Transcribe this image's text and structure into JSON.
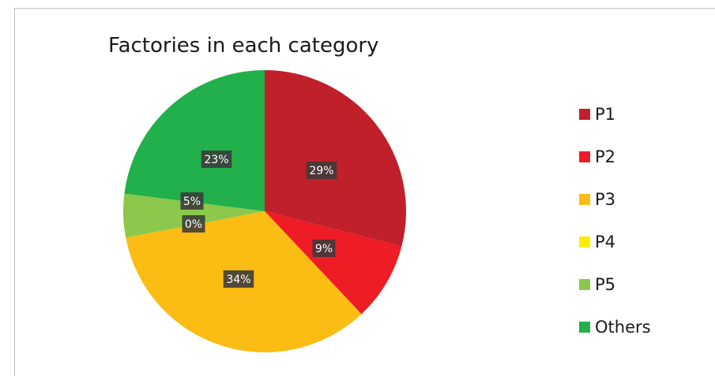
{
  "chart_data": {
    "type": "pie",
    "title": "Factories in each category",
    "categories": [
      "P1",
      "P2",
      "P3",
      "P4",
      "P5",
      "Others"
    ],
    "values": [
      29,
      9,
      34,
      0,
      5,
      23
    ],
    "labels": [
      "29%",
      "9%",
      "34%",
      "0%",
      "5%",
      "23%"
    ],
    "colors": [
      "#c0202a",
      "#ee1c25",
      "#fbbd13",
      "#ffed00",
      "#8cc84b",
      "#21b04b"
    ],
    "legend_position": "right",
    "label_box_color": "#3a3a3a"
  }
}
